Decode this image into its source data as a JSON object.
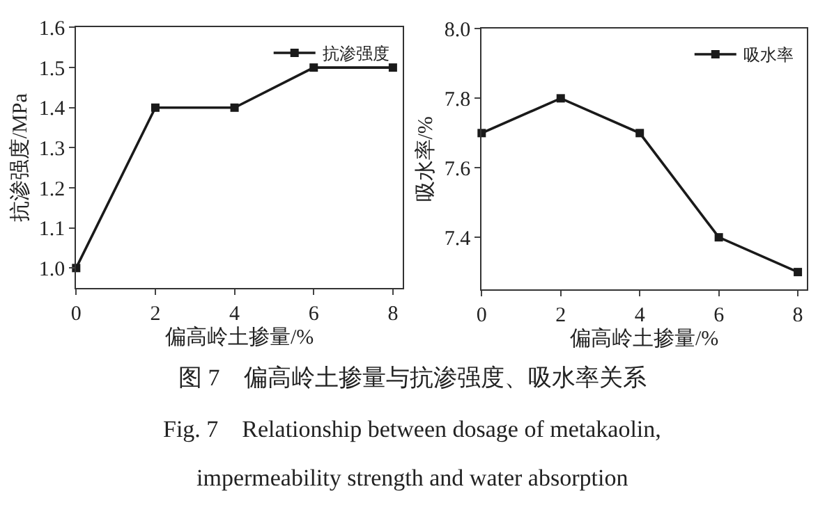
{
  "chart_data": [
    {
      "type": "line",
      "xlabel": "偏高岭土掺量/%",
      "ylabel": "抗渗强度/MPa",
      "x": [
        0,
        2,
        4,
        6,
        8
      ],
      "xlim": [
        0,
        8.25
      ],
      "xticks": [
        0,
        2,
        4,
        6,
        8
      ],
      "ylim": [
        0.95,
        1.6
      ],
      "yticks": [
        {
          "value": 1,
          "label": "1.0"
        },
        1.1,
        1.2,
        1.3,
        1.4,
        1.5,
        1.6
      ],
      "marker": "square",
      "line_style": "solid",
      "legend": "top right",
      "series": [
        {
          "name": "抗渗强度",
          "color": "#1a1a1a",
          "values": [
            1.0,
            1.4,
            1.4,
            1.5,
            1.5
          ]
        }
      ],
      "annotations": [
        "图 7　偏高岭土掺量与抗渗强度、吸水率关系",
        "Fig. 7　Relationship between dosage of metakaolin,",
        "impermeability strength and water absorption"
      ]
    },
    {
      "type": "line",
      "xlabel": "偏高岭土掺量/%",
      "ylabel": "吸水率/%",
      "x": [
        0,
        2,
        4,
        6,
        8
      ],
      "xlim": [
        0,
        8.23
      ],
      "xticks": [
        0,
        2,
        4,
        6,
        8
      ],
      "ylim": [
        7.25,
        8.0
      ],
      "yticks": [
        7.4,
        7.6,
        7.8,
        {
          "value": 8,
          "label": "8.0"
        }
      ],
      "marker": "square",
      "line_style": "solid",
      "legend": "top right",
      "series": [
        {
          "name": "吸水率",
          "color": "#1a1a1a",
          "values": [
            7.7,
            7.8,
            7.7,
            7.4,
            7.3
          ]
        }
      ]
    }
  ]
}
